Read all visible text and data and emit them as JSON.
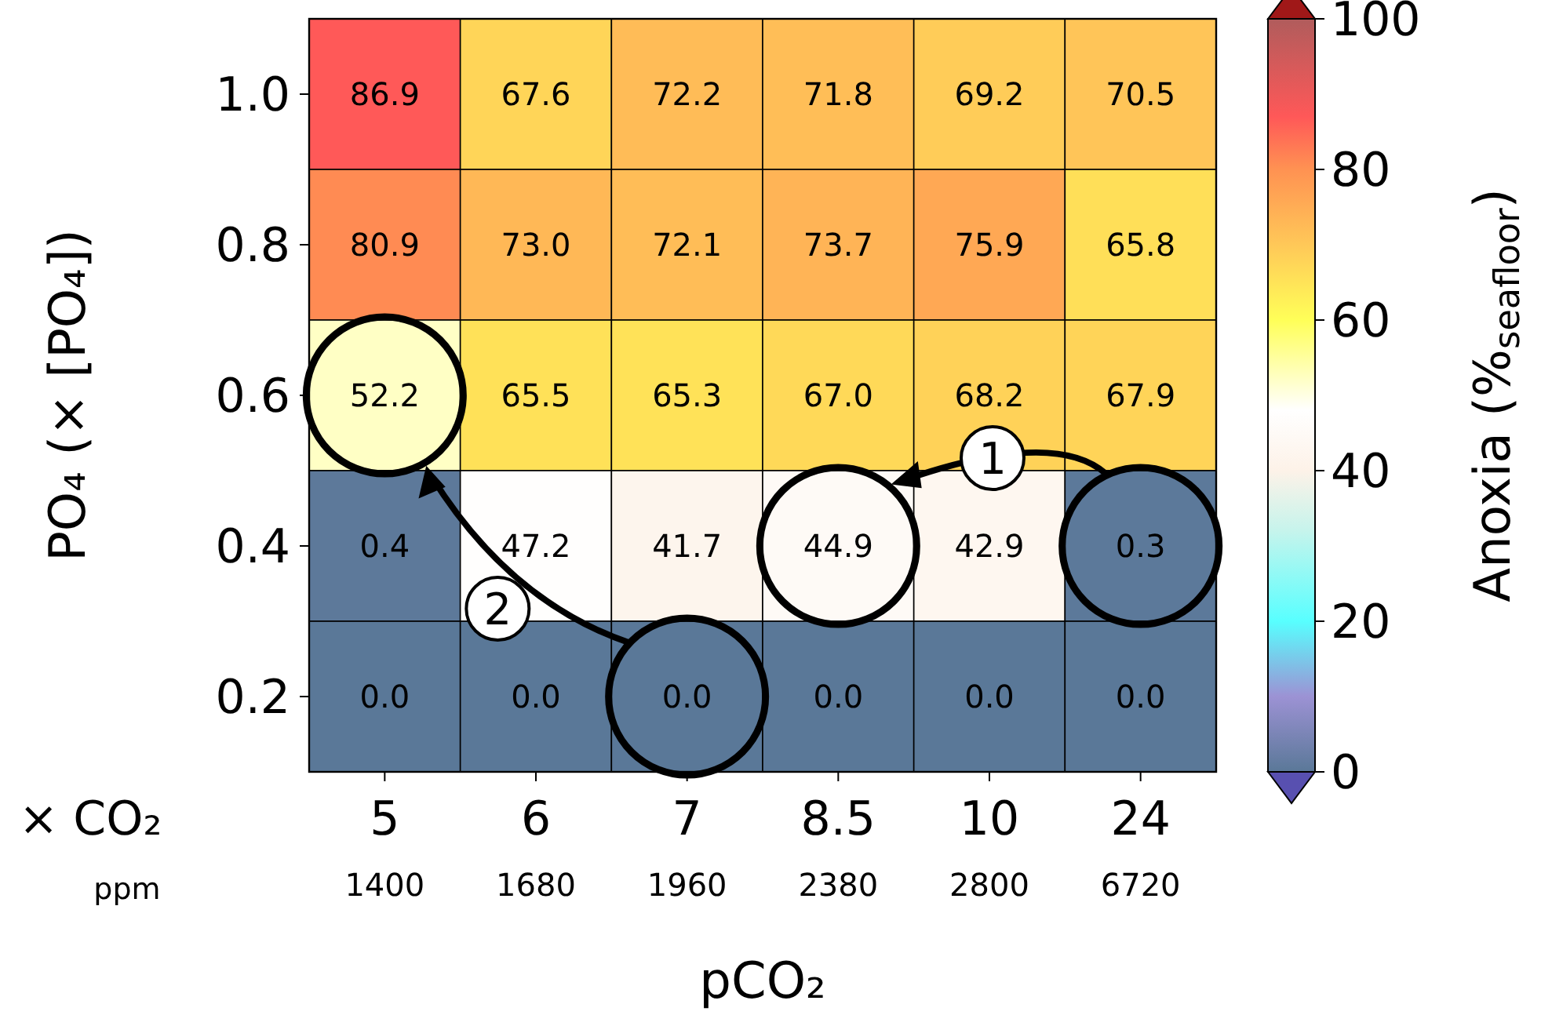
{
  "chart_data": {
    "type": "heatmap",
    "categories": [
      "5",
      "6",
      "7",
      "8.5",
      "10",
      "24"
    ],
    "y_categories": [
      "1.0",
      "0.8",
      "0.6",
      "0.4",
      "0.2"
    ],
    "cells": [
      [
        86.9,
        67.6,
        72.2,
        71.8,
        69.2,
        70.5
      ],
      [
        80.9,
        73.0,
        72.1,
        73.7,
        75.9,
        65.8
      ],
      [
        52.2,
        65.5,
        65.3,
        67.0,
        68.2,
        67.9
      ],
      [
        0.4,
        47.2,
        41.7,
        44.9,
        42.9,
        0.3
      ],
      [
        0.0,
        0.0,
        0.0,
        0.0,
        0.0,
        0.0
      ]
    ],
    "cell_labels": [
      [
        "86.9",
        "67.6",
        "72.2",
        "71.8",
        "69.2",
        "70.5"
      ],
      [
        "80.9",
        "73.0",
        "72.1",
        "73.7",
        "75.9",
        "65.8"
      ],
      [
        "52.2",
        "65.5",
        "65.3",
        "67.0",
        "68.2",
        "67.9"
      ],
      [
        "0.4",
        "47.2",
        "41.7",
        "44.9",
        "42.9",
        "0.3"
      ],
      [
        "0.0",
        "0.0",
        "0.0",
        "0.0",
        "0.0",
        "0.0"
      ]
    ],
    "xlabel": "pCO₂",
    "ylabel": "PO₄ (× [PO₄])",
    "clabel": "Anoxia (%$_{seafloor}$)",
    "clim": [
      0,
      100
    ],
    "cticks": [
      0,
      20,
      40,
      60,
      80,
      100
    ],
    "annotations": [
      "1",
      "2",
      "× CO₂",
      "ppm",
      "1400",
      "1680",
      "1960",
      "2380",
      "2800",
      "6720"
    ]
  }
}
